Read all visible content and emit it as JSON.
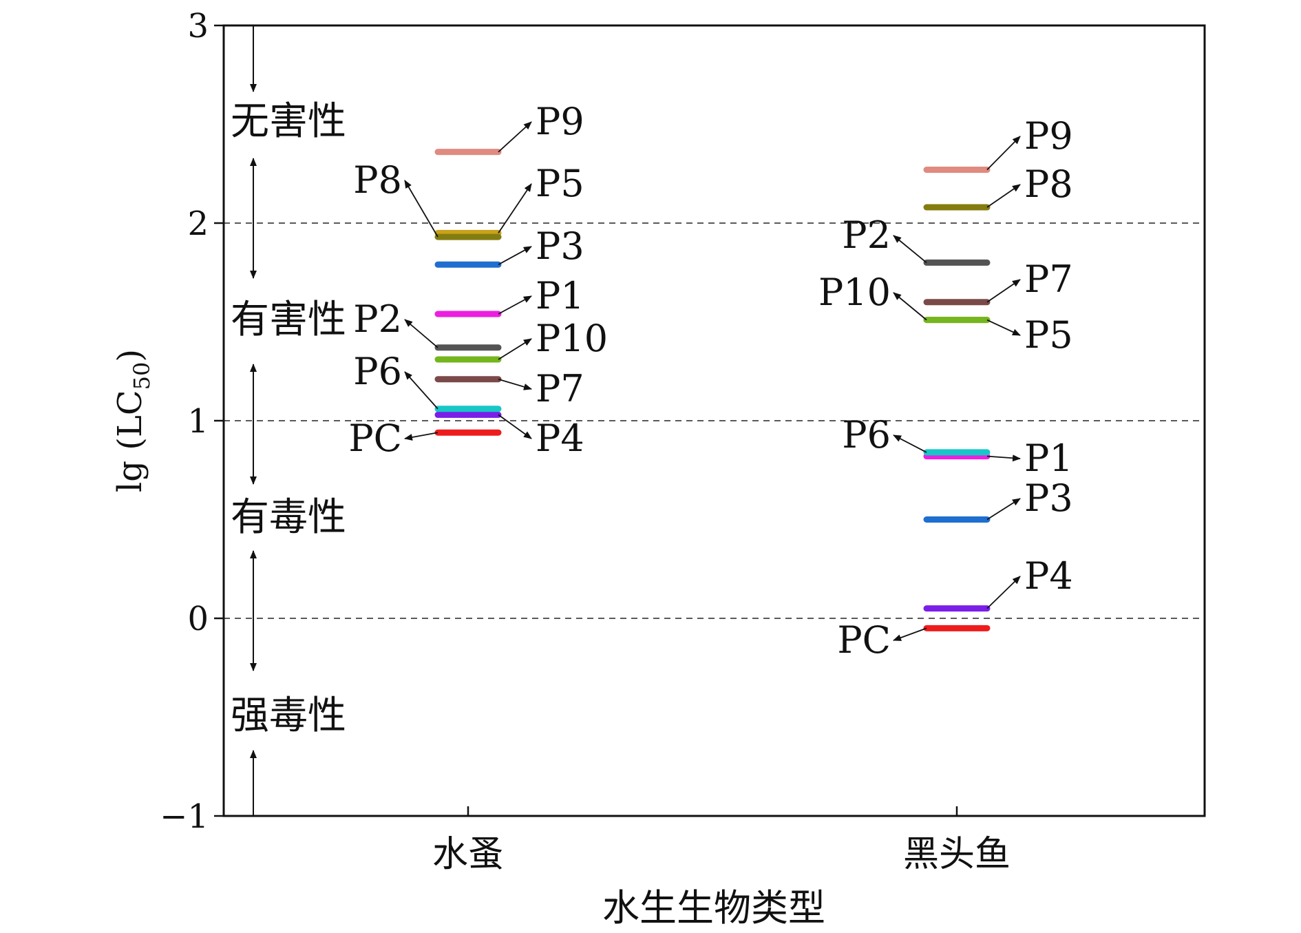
{
  "chart_data": {
    "type": "scatter",
    "ylabel": "lg (LC",
    "ylabel_sub": "50",
    "ylabel_close": ")",
    "xlabel": "水生生物类型",
    "ylim": [
      -1,
      3
    ],
    "yticks": [
      "−1",
      "0",
      "1",
      "2",
      "3"
    ],
    "ytick_values": [
      -1,
      0,
      1,
      2,
      3
    ],
    "grid": "dashed lines at y = 0, 1, 2",
    "categories": [
      "水蚤",
      "黑头鱼"
    ],
    "toxicity_classes": [
      {
        "label": "无害性",
        "range": "> 2"
      },
      {
        "label": "有害性",
        "range": "1 – 2"
      },
      {
        "label": "有毒性",
        "range": "0 – 1"
      },
      {
        "label": "强毒性",
        "range": "< 0"
      }
    ],
    "series": [
      {
        "name": "PC",
        "color": "#ee1c1c",
        "values": [
          0.94,
          -0.05
        ]
      },
      {
        "name": "P1",
        "color": "#ec1fe0",
        "values": [
          1.54,
          0.82
        ]
      },
      {
        "name": "P2",
        "color": "#545454",
        "values": [
          1.37,
          1.8
        ]
      },
      {
        "name": "P3",
        "color": "#1e6fcf",
        "values": [
          1.79,
          0.5
        ]
      },
      {
        "name": "P4",
        "color": "#7a1ee8",
        "values": [
          1.03,
          0.05
        ]
      },
      {
        "name": "P5",
        "color": "#c9a21a",
        "values": [
          1.95,
          1.51
        ]
      },
      {
        "name": "P6",
        "color": "#17c7c7",
        "values": [
          1.06,
          0.84
        ]
      },
      {
        "name": "P7",
        "color": "#7a4a48",
        "values": [
          1.21,
          1.6
        ]
      },
      {
        "name": "P8",
        "color": "#847c10",
        "values": [
          1.93,
          2.08
        ]
      },
      {
        "name": "P9",
        "color": "#e08a80",
        "values": [
          2.36,
          2.27
        ]
      },
      {
        "name": "P10",
        "color": "#74b61e",
        "values": [
          1.31,
          1.51
        ]
      }
    ]
  }
}
